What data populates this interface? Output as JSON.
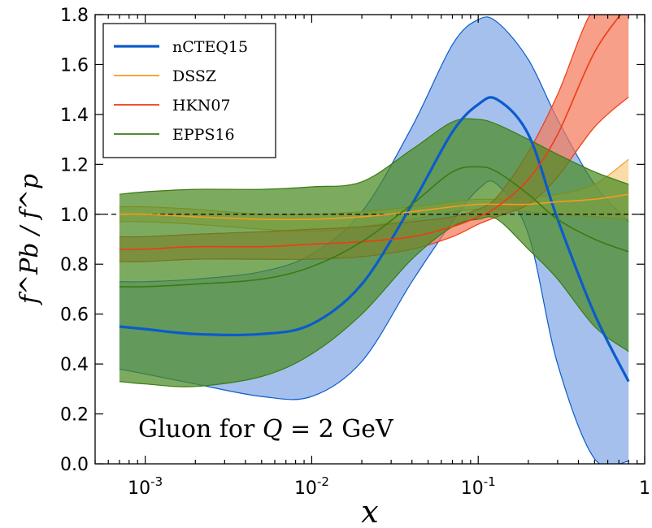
{
  "chart_data": {
    "type": "line",
    "title": "",
    "xlabel": "x",
    "ylabel": "f^Pb / f^p",
    "x_scale": "log",
    "xlim": [
      0.0005,
      1.0
    ],
    "ylim": [
      0.0,
      1.8
    ],
    "grid": false,
    "legend_position": "top-left",
    "annotation": "Gluon for Q = 2 GeV",
    "annotation_parts": {
      "prefix": "Gluon for ",
      "var": "Q",
      "eq": " = 2 ",
      "unit": "GeV"
    },
    "reference_line": 1.0,
    "x_ticks": [
      {
        "base": "10",
        "exp": "-3"
      },
      {
        "base": "10",
        "exp": "-2"
      },
      {
        "base": "10",
        "exp": "-1"
      },
      {
        "base": "1",
        "exp": ""
      }
    ],
    "y_ticks": [
      "0.0",
      "0.2",
      "0.4",
      "0.6",
      "0.8",
      "1.0",
      "1.2",
      "1.4",
      "1.6",
      "1.8"
    ],
    "x": [
      0.0007,
      0.001,
      0.002,
      0.005,
      0.01,
      0.02,
      0.04,
      0.07,
      0.1,
      0.13,
      0.2,
      0.3,
      0.5,
      0.8
    ],
    "series": [
      {
        "name": "nCTEQ15",
        "color": "#0b5bcc",
        "band_color": "#82a8e6",
        "central": [
          0.55,
          0.54,
          0.52,
          0.52,
          0.56,
          0.72,
          1.04,
          1.33,
          1.44,
          1.46,
          1.32,
          0.98,
          0.6,
          0.33
        ],
        "upper": [
          0.73,
          0.73,
          0.74,
          0.77,
          0.84,
          1.01,
          1.35,
          1.68,
          1.78,
          1.77,
          1.62,
          1.38,
          1.12,
          0.97
        ],
        "lower": [
          0.38,
          0.36,
          0.32,
          0.27,
          0.27,
          0.41,
          0.73,
          0.97,
          1.1,
          1.12,
          0.92,
          0.4,
          0.02,
          0.01
        ]
      },
      {
        "name": "DSSZ",
        "color": "#f39c1e",
        "band_color": "#f7cf88",
        "central": [
          1.0,
          1.0,
          0.99,
          0.98,
          0.98,
          0.99,
          1.01,
          1.03,
          1.04,
          1.04,
          1.04,
          1.05,
          1.06,
          1.08
        ],
        "upper": [
          1.03,
          1.03,
          1.02,
          1.0,
          1.0,
          1.01,
          1.03,
          1.05,
          1.06,
          1.06,
          1.07,
          1.08,
          1.12,
          1.22
        ],
        "lower": [
          0.97,
          0.97,
          0.96,
          0.94,
          0.93,
          0.95,
          0.98,
          1.01,
          1.02,
          1.02,
          1.01,
          1.0,
          0.99,
          0.98
        ]
      },
      {
        "name": "HKN07",
        "color": "#ee3c12",
        "band_color": "#f47a5a",
        "central": [
          0.86,
          0.86,
          0.87,
          0.87,
          0.88,
          0.89,
          0.91,
          0.95,
          0.99,
          1.03,
          1.14,
          1.32,
          1.65,
          1.84
        ],
        "upper": [
          0.91,
          0.91,
          0.92,
          0.93,
          0.94,
          0.95,
          0.97,
          0.99,
          1.02,
          1.07,
          1.25,
          1.48,
          1.83,
          1.85
        ],
        "lower": [
          0.81,
          0.81,
          0.82,
          0.82,
          0.82,
          0.83,
          0.86,
          0.91,
          0.96,
          0.99,
          1.04,
          1.15,
          1.35,
          1.47
        ]
      },
      {
        "name": "EPPS16",
        "color": "#3a7b12",
        "band_color": "#4a8a22",
        "central": [
          0.71,
          0.71,
          0.72,
          0.74,
          0.79,
          0.89,
          1.04,
          1.17,
          1.19,
          1.17,
          1.08,
          0.98,
          0.9,
          0.85
        ],
        "upper": [
          1.08,
          1.09,
          1.1,
          1.1,
          1.11,
          1.13,
          1.26,
          1.37,
          1.38,
          1.36,
          1.3,
          1.24,
          1.17,
          1.12
        ],
        "lower": [
          0.33,
          0.32,
          0.31,
          0.35,
          0.44,
          0.6,
          0.82,
          0.95,
          0.98,
          0.98,
          0.86,
          0.74,
          0.55,
          0.45
        ]
      }
    ]
  }
}
